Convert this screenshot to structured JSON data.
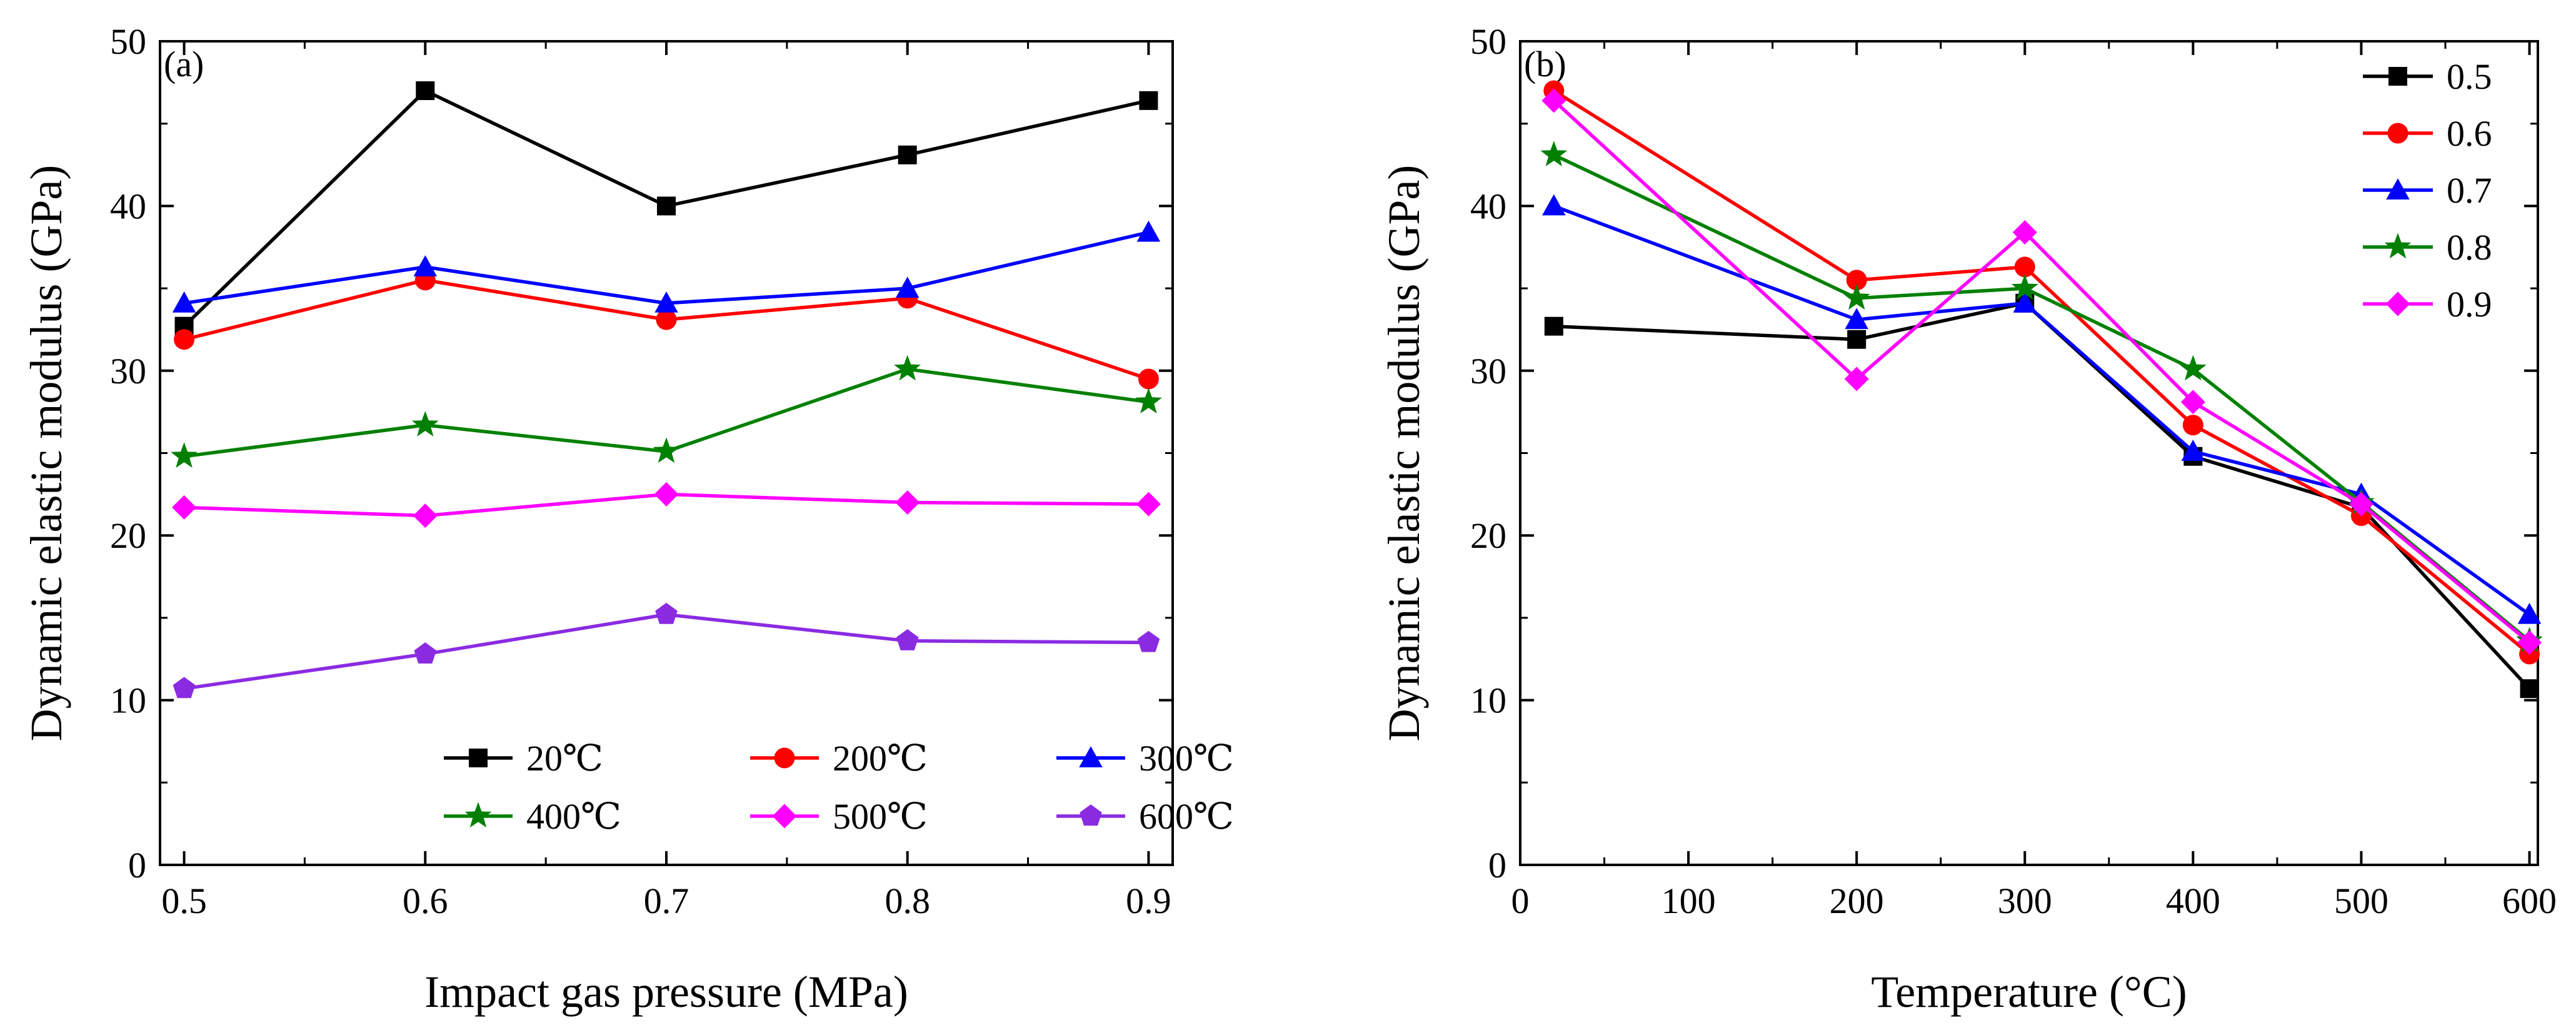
{
  "chart_data": [
    {
      "type": "line",
      "panel_label": "(a)",
      "xlabel": "Impact gas pressure (MPa)",
      "ylabel": "Dynamic elastic modulus (GPa)",
      "x": [
        0.5,
        0.6,
        0.7,
        0.8,
        0.9
      ],
      "x_tick_labels": [
        "0.5",
        "0.6",
        "0.7",
        "0.8",
        "0.9"
      ],
      "xlim": [
        0.49,
        0.91
      ],
      "ylim": [
        0,
        50
      ],
      "y_ticks": [
        0,
        10,
        20,
        30,
        40,
        50
      ],
      "y_tick_labels": [
        "0",
        "10",
        "20",
        "30",
        "40",
        "50"
      ],
      "legend_position": "bottom-right",
      "grid": false,
      "series": [
        {
          "name": "20℃",
          "color": "#000000",
          "marker": "square",
          "values": [
            32.7,
            47.0,
            40.0,
            43.1,
            46.4
          ]
        },
        {
          "name": "200℃",
          "color": "#ff0000",
          "marker": "circle",
          "values": [
            31.9,
            35.5,
            33.1,
            34.4,
            29.5
          ]
        },
        {
          "name": "300℃",
          "color": "#0000ff",
          "marker": "triangle",
          "values": [
            34.1,
            36.3,
            34.1,
            35.0,
            38.4
          ]
        },
        {
          "name": "400℃",
          "color": "#008000",
          "marker": "star",
          "values": [
            24.8,
            26.7,
            25.1,
            30.1,
            28.1
          ]
        },
        {
          "name": "500℃",
          "color": "#ff00ff",
          "marker": "diamond",
          "values": [
            21.7,
            21.2,
            22.5,
            22.0,
            21.9
          ]
        },
        {
          "name": "600℃",
          "color": "#8a2be2",
          "marker": "pentagon",
          "values": [
            10.7,
            12.8,
            15.2,
            13.6,
            13.5
          ]
        }
      ]
    },
    {
      "type": "line",
      "panel_label": "(b)",
      "xlabel": "Temperature (°C)",
      "ylabel": "Dynamic elastic modulus (GPa)",
      "x": [
        20,
        200,
        300,
        400,
        500,
        600
      ],
      "x_ticks": [
        0,
        100,
        200,
        300,
        400,
        500,
        600
      ],
      "x_tick_labels": [
        "0",
        "100",
        "200",
        "300",
        "400",
        "500",
        "600"
      ],
      "xlim": [
        0,
        605
      ],
      "ylim": [
        0,
        50
      ],
      "y_ticks": [
        0,
        10,
        20,
        30,
        40,
        50
      ],
      "y_tick_labels": [
        "0",
        "10",
        "20",
        "30",
        "40",
        "50"
      ],
      "legend_position": "top-right",
      "grid": false,
      "series": [
        {
          "name": "0.5",
          "color": "#000000",
          "marker": "square",
          "values": [
            32.7,
            31.9,
            34.1,
            24.8,
            21.7,
            10.7
          ]
        },
        {
          "name": "0.6",
          "color": "#ff0000",
          "marker": "circle",
          "values": [
            47.0,
            35.5,
            36.3,
            26.7,
            21.2,
            12.8
          ]
        },
        {
          "name": "0.7",
          "color": "#0000ff",
          "marker": "triangle",
          "values": [
            40.0,
            33.1,
            34.1,
            25.1,
            22.5,
            15.2
          ]
        },
        {
          "name": "0.8",
          "color": "#008000",
          "marker": "star",
          "values": [
            43.1,
            34.4,
            35.0,
            30.1,
            22.0,
            13.6
          ]
        },
        {
          "name": "0.9",
          "color": "#ff00ff",
          "marker": "diamond",
          "values": [
            46.4,
            29.5,
            38.4,
            28.1,
            21.9,
            13.5
          ]
        }
      ]
    }
  ]
}
